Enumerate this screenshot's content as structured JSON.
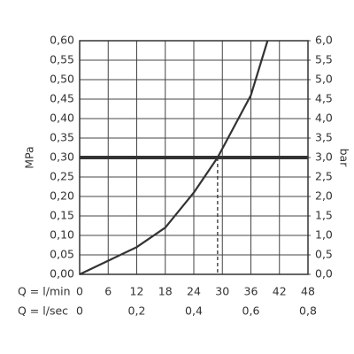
{
  "chart_data": {
    "type": "line",
    "y_label": "MPa",
    "y2_label": "bar",
    "x_label": "Q = l/min",
    "x2_label": "Q = l/sec",
    "x": [
      0,
      6,
      12,
      18,
      24,
      29,
      36,
      39.5
    ],
    "values": [
      0,
      0.035,
      0.07,
      0.12,
      0.21,
      0.3,
      0.46,
      0.6
    ],
    "color": "#333333",
    "xlim": [
      0,
      48
    ],
    "xticks": [
      0,
      6,
      12,
      18,
      24,
      30,
      36,
      42,
      48
    ],
    "x2lim": [
      0,
      0.8
    ],
    "x2ticks": [
      0,
      {
        "value": 0.2,
        "label": "0,2"
      },
      {
        "value": 0.4,
        "label": "0,4"
      },
      {
        "value": 0.6,
        "label": "0,6"
      },
      {
        "value": 0.8,
        "label": "0,8"
      }
    ],
    "ylim": [
      0,
      0.6
    ],
    "yticks": [
      {
        "value": 0,
        "label": "0,00"
      },
      {
        "value": 0.05,
        "label": "0,05"
      },
      {
        "value": 0.1,
        "label": "0,10"
      },
      {
        "value": 0.15,
        "label": "0,15"
      },
      {
        "value": 0.2,
        "label": "0,20"
      },
      {
        "value": 0.25,
        "label": "0,25"
      },
      {
        "value": 0.3,
        "label": "0,30"
      },
      {
        "value": 0.35,
        "label": "0,35"
      },
      {
        "value": 0.4,
        "label": "0,40"
      },
      {
        "value": 0.45,
        "label": "0,45"
      },
      {
        "value": 0.5,
        "label": "0,50"
      },
      {
        "value": 0.55,
        "label": "0,55"
      },
      {
        "value": 0.6,
        "label": "0,60"
      }
    ],
    "y2lim": [
      0,
      6
    ],
    "y2ticks": [
      {
        "value": 0,
        "label": "0,0"
      },
      {
        "value": 0.5,
        "label": "0,5"
      },
      {
        "value": 1,
        "label": "1,0"
      },
      {
        "value": 1.5,
        "label": "1,5"
      },
      {
        "value": 2,
        "label": "2,0"
      },
      {
        "value": 2.5,
        "label": "2,5"
      },
      {
        "value": 3,
        "label": "3,0"
      },
      {
        "value": 3.5,
        "label": "3,5"
      },
      {
        "value": 4,
        "label": "4,0"
      },
      {
        "value": 4.5,
        "label": "4,5"
      },
      {
        "value": 5,
        "label": "5,0"
      },
      {
        "value": 5.5,
        "label": "5,5"
      },
      {
        "value": 6,
        "label": "6,0"
      }
    ],
    "hline": 0.3,
    "vline": 29,
    "grid": true
  }
}
